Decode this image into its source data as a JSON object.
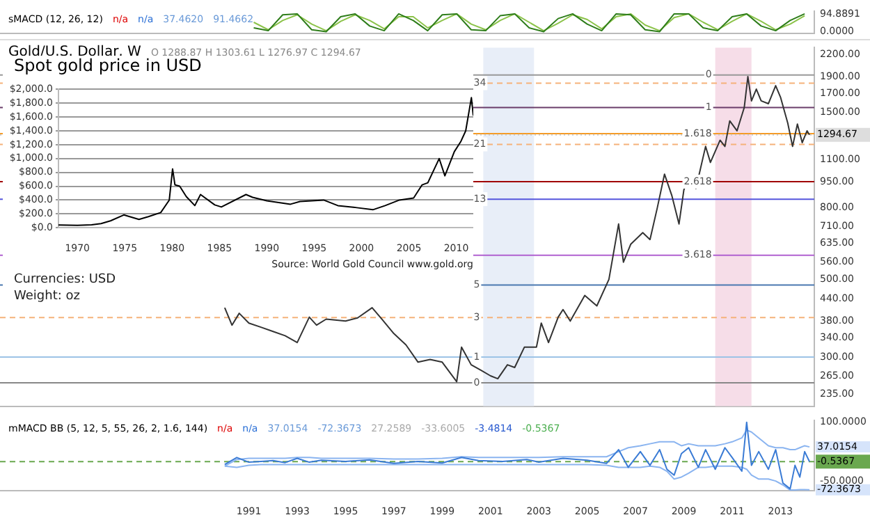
{
  "chart_data": [
    {
      "type": "line",
      "title": "sMACD (12, 26, 12)",
      "annotations": [
        "n/a",
        "n/a",
        "37.4620",
        "91.4662"
      ],
      "xlim": [
        1980.7,
        2014.4
      ],
      "ylim": [
        -8,
        108
      ],
      "yticks": [
        {
          "value": 0,
          "label": "0.0000"
        },
        {
          "value": 94.8891,
          "label": "94.8891"
        }
      ],
      "tick_labels": "y",
      "grid": false,
      "x": [
        1991.2,
        1991.8,
        1992.4,
        1993.0,
        1993.6,
        1994.2,
        1994.8,
        1995.4,
        1996.0,
        1996.6,
        1997.2,
        1997.8,
        1998.4,
        1999.0,
        1999.6,
        2000.2,
        2000.8,
        2001.4,
        2002.0,
        2002.6,
        2003.2,
        2003.8,
        2004.4,
        2005.0,
        2005.6,
        2006.2,
        2006.8,
        2007.4,
        2008.0,
        2008.6,
        2009.2,
        2009.8,
        2010.4,
        2011.0,
        2011.6,
        2012.2,
        2012.8,
        2013.4,
        2014.0
      ],
      "series": [
        {
          "color": "#2e7d1a",
          "values": [
            20,
            5,
            90,
            95,
            10,
            0,
            80,
            95,
            30,
            5,
            95,
            60,
            5,
            90,
            95,
            10,
            5,
            85,
            95,
            20,
            0,
            70,
            95,
            40,
            5,
            95,
            90,
            10,
            0,
            95,
            95,
            20,
            5,
            80,
            95,
            30,
            5,
            60,
            94.8891
          ]
        },
        {
          "color": "#8cc34a",
          "values": [
            50,
            10,
            60,
            90,
            40,
            5,
            55,
            90,
            60,
            15,
            80,
            80,
            20,
            60,
            95,
            40,
            10,
            60,
            95,
            50,
            5,
            45,
            90,
            65,
            15,
            80,
            95,
            35,
            5,
            75,
            95,
            50,
            10,
            55,
            95,
            55,
            10,
            40,
            85
          ]
        }
      ]
    },
    {
      "type": "line",
      "title": "Gold/U.S. Dollar, W",
      "annotations": [
        "O 1288.87 H 1303.61 L 1276.97 C 1294.67",
        {
          "text": "0",
          "x": 2000.3,
          "y": 253
        },
        {
          "text": "1",
          "x": 2000.3,
          "y": 300
        },
        {
          "text": "3",
          "x": 2000.3,
          "y": 389
        },
        {
          "text": "5",
          "x": 2000.3,
          "y": 482
        },
        {
          "text": "13",
          "x": 2000.3,
          "y": 848
        },
        {
          "text": "21",
          "x": 2000.3,
          "y": 1216
        },
        {
          "text": "34",
          "x": 2000.3,
          "y": 1820
        },
        {
          "text": "0",
          "x": 2009.9,
          "y": 1920
        },
        {
          "text": "1",
          "x": 2009.9,
          "y": 1550
        },
        {
          "text": "1.618",
          "x": 2009.0,
          "y": 1306
        },
        {
          "text": "2.618",
          "x": 2009.0,
          "y": 952
        },
        {
          "text": "3.618",
          "x": 2009.0,
          "y": 586
        }
      ],
      "log": true,
      "xlim": [
        1980.7,
        2014.4
      ],
      "ylim": [
        217,
        2300
      ],
      "tick_labels": "y",
      "grid": false,
      "yticks": [
        {
          "value": 235,
          "label": "235.00"
        },
        {
          "value": 265,
          "label": "265.00"
        },
        {
          "value": 300,
          "label": "300.00"
        },
        {
          "value": 340,
          "label": "340.00"
        },
        {
          "value": 380,
          "label": "380.00"
        },
        {
          "value": 440,
          "label": "440.00"
        },
        {
          "value": 500,
          "label": "500.00"
        },
        {
          "value": 560,
          "label": "560.00"
        },
        {
          "value": 635,
          "label": "635.00"
        },
        {
          "value": 710,
          "label": "710.00"
        },
        {
          "value": 800,
          "label": "800.00"
        },
        {
          "value": 950,
          "label": "950.00"
        },
        {
          "value": 1100,
          "label": "1100.00"
        },
        {
          "value": 1500,
          "label": "1500.00"
        },
        {
          "value": 1700,
          "label": "1700.00"
        },
        {
          "value": 1900,
          "label": "1900.00"
        },
        {
          "value": 2200,
          "label": "2200.00"
        }
      ],
      "x": [
        1990.0,
        1990.3,
        1990.6,
        1991.0,
        1991.5,
        1992.0,
        1992.5,
        1993.0,
        1993.5,
        1993.8,
        1994.2,
        1995.0,
        1995.5,
        1996.1,
        1996.5,
        1997.0,
        1997.5,
        1998.0,
        1998.5,
        1999.0,
        1999.6,
        1999.8,
        2000.2,
        2000.6,
        2001.0,
        2001.3,
        2001.7,
        2002.0,
        2002.4,
        2002.9,
        2003.1,
        2003.4,
        2003.8,
        2004.0,
        2004.3,
        2004.9,
        2005.4,
        2005.9,
        2006.3,
        2006.5,
        2006.8,
        2007.3,
        2007.6,
        2007.9,
        2008.2,
        2008.5,
        2008.8,
        2009.0,
        2009.2,
        2009.5,
        2009.9,
        2010.1,
        2010.5,
        2010.7,
        2010.9,
        2011.2,
        2011.5,
        2011.65,
        2011.8,
        2012.0,
        2012.2,
        2012.5,
        2012.8,
        2013.0,
        2013.3,
        2013.5,
        2013.7,
        2013.9,
        2014.1,
        2014.2
      ],
      "series": [
        {
          "color": "#333333",
          "values": [
            415,
            370,
            400,
            375,
            365,
            355,
            345,
            330,
            390,
            370,
            385,
            380,
            388,
            415,
            385,
            350,
            325,
            290,
            295,
            290,
            255,
            320,
            285,
            275,
            265,
            260,
            285,
            280,
            320,
            320,
            375,
            330,
            390,
            410,
            380,
            450,
            420,
            500,
            720,
            560,
            630,
            680,
            650,
            800,
            1000,
            870,
            720,
            900,
            990,
            910,
            1200,
            1080,
            1250,
            1200,
            1420,
            1330,
            1550,
            1900,
            1620,
            1750,
            1620,
            1590,
            1790,
            1660,
            1400,
            1200,
            1390,
            1230,
            1330,
            1294.67
          ]
        }
      ],
      "bands": [
        {
          "axis": "x",
          "from": 2000.7,
          "to": 2002.8,
          "color": "#e8eef8"
        },
        {
          "axis": "x",
          "from": 2010.3,
          "to": 2011.8,
          "color": "#f6dde8"
        }
      ],
      "ref_lines": [
        {
          "axis": "y",
          "value": 253,
          "color": "#888888"
        },
        {
          "axis": "y",
          "value": 300,
          "color": "#9cc3e6"
        },
        {
          "axis": "y",
          "value": 389,
          "color": "#f5b27a",
          "line_style": "dashed"
        },
        {
          "axis": "y",
          "value": 482,
          "color": "#4a78b0"
        },
        {
          "axis": "y",
          "value": 848,
          "color": "#5555dd"
        },
        {
          "axis": "y",
          "value": 1216,
          "color": "#f5b27a",
          "line_style": "dashed"
        },
        {
          "axis": "y",
          "value": 1820,
          "color": "#f5b27a",
          "line_style": "dashed"
        },
        {
          "axis": "y",
          "value": 1920,
          "color": "#999999"
        },
        {
          "axis": "y",
          "value": 1550,
          "color": "#6a3d6a"
        },
        {
          "axis": "y",
          "value": 1306,
          "color": "#f59a23"
        },
        {
          "axis": "y",
          "value": 952,
          "color": "#a00000"
        },
        {
          "axis": "y",
          "value": 586,
          "color": "#b060d0"
        },
        {
          "axis": "y",
          "value": 1294.67,
          "label": "1294.67",
          "color": "#cccccc",
          "line_style": "dotted"
        }
      ]
    },
    {
      "type": "line",
      "title": "Spot gold price in USD",
      "annotations": [
        "Source: World Gold Council www.gold.org",
        "Currencies:  USD",
        "Weight: oz"
      ],
      "xlim": [
        1968,
        2011.8
      ],
      "xticks": [
        1970,
        1975,
        1980,
        1985,
        1990,
        1995,
        2000,
        2005,
        2010
      ],
      "ylim": [
        0,
        2000
      ],
      "grid": "y",
      "yticks": [
        {
          "value": 0,
          "label": "$0.0"
        },
        {
          "value": 200,
          "label": "$200.0"
        },
        {
          "value": 400,
          "label": "$400.0"
        },
        {
          "value": 600,
          "label": "$600.0"
        },
        {
          "value": 800,
          "label": "$800.0"
        },
        {
          "value": 1000,
          "label": "$1,000.0"
        },
        {
          "value": 1200,
          "label": "$1,200.0"
        },
        {
          "value": 1400,
          "label": "$1,400.0"
        },
        {
          "value": 1600,
          "label": "$1,600.0"
        },
        {
          "value": 1800,
          "label": "$1,800.0"
        },
        {
          "value": 2000,
          "label": "$2,000.0"
        }
      ],
      "x": [
        1968,
        1970,
        1971.5,
        1972.5,
        1973.5,
        1974.9,
        1976.5,
        1977.5,
        1978.8,
        1979.7,
        1980.05,
        1980.3,
        1980.8,
        1981.5,
        1982.4,
        1983.0,
        1984.5,
        1985.2,
        1987.8,
        1988.5,
        1990,
        1992.5,
        1993.5,
        1996.0,
        1997.5,
        1999.5,
        2001.2,
        2002.5,
        2004,
        2005.5,
        2006.4,
        2007.0,
        2008.2,
        2008.8,
        2009.8,
        2010.5,
        2011.0,
        2011.6,
        2011.8
      ],
      "series": [
        {
          "color": "#000000",
          "values": [
            40,
            35,
            42,
            60,
            100,
            185,
            120,
            160,
            220,
            400,
            850,
            620,
            600,
            450,
            320,
            480,
            330,
            300,
            480,
            440,
            390,
            340,
            380,
            400,
            320,
            290,
            260,
            320,
            400,
            430,
            620,
            650,
            1000,
            750,
            1100,
            1250,
            1400,
            1880,
            1620
          ]
        }
      ]
    },
    {
      "type": "line",
      "title": "mMACD BB (5, 12, 5, 55, 26, 2, 1.6, 144)",
      "annotations": [
        "n/a",
        "n/a",
        "37.0154",
        "-72.3673",
        "27.2589",
        "-33.6005",
        "-3.4814",
        "-0.5367",
        {
          "text": "37.0154",
          "x": 2014.4,
          "y": 37.0154
        },
        {
          "text": "-72.3673",
          "x": 2014.4,
          "y": -72.3673
        }
      ],
      "xlim": [
        1980.7,
        2014.4
      ],
      "xticks": [
        1991,
        1993,
        1995,
        1997,
        1999,
        2001,
        2003,
        2005,
        2007,
        2009,
        2011,
        2013
      ],
      "ylim": [
        -75,
        104
      ],
      "yticks": [
        {
          "value": 100,
          "label": "100.0000"
        },
        {
          "value": -50,
          "label": "-50.0000"
        }
      ],
      "grid": false,
      "ref_lines": [
        {
          "axis": "y",
          "value": -0.5367,
          "label": "-0.5367",
          "color": "#6aa84f",
          "line_style": "dashed"
        }
      ],
      "x": [
        1990.0,
        1990.5,
        1991.0,
        1991.5,
        1992.0,
        1992.5,
        1993.0,
        1993.5,
        1994.0,
        1995.0,
        1996.0,
        1997.0,
        1998.0,
        1999.0,
        1999.8,
        2000.5,
        2001.5,
        2002.5,
        2003.0,
        2004.0,
        2005.0,
        2005.8,
        2006.3,
        2006.7,
        2007.2,
        2007.6,
        2008.0,
        2008.3,
        2008.6,
        2008.9,
        2009.2,
        2009.6,
        2009.9,
        2010.3,
        2010.7,
        2011.0,
        2011.4,
        2011.6,
        2011.8,
        2012.1,
        2012.5,
        2012.8,
        2013.1,
        2013.4,
        2013.6,
        2013.8,
        2014.0,
        2014.2
      ],
      "series": [
        {
          "color": "#3a7bd5",
          "values": [
            -8,
            10,
            -2,
            0,
            2,
            -3,
            8,
            -2,
            3,
            0,
            4,
            -5,
            0,
            -4,
            10,
            2,
            0,
            5,
            -2,
            8,
            3,
            -5,
            30,
            -15,
            25,
            -10,
            30,
            -20,
            -35,
            20,
            35,
            -15,
            30,
            -20,
            35,
            10,
            -25,
            100,
            -10,
            25,
            -20,
            30,
            -55,
            -70,
            -10,
            -40,
            25,
            -0.5367
          ]
        },
        {
          "color": "#8ab4f0",
          "values": [
            -12,
            5,
            8,
            8,
            8,
            8,
            10,
            10,
            8,
            8,
            8,
            6,
            6,
            8,
            12,
            10,
            10,
            10,
            10,
            12,
            12,
            12,
            25,
            35,
            40,
            45,
            50,
            50,
            50,
            40,
            45,
            40,
            40,
            40,
            45,
            50,
            60,
            80,
            75,
            60,
            40,
            35,
            35,
            30,
            30,
            35,
            40,
            37.0154
          ]
        },
        {
          "color": "#8ab4f0",
          "values": [
            -12,
            -15,
            -10,
            -8,
            -8,
            -8,
            -8,
            -8,
            -8,
            -8,
            -8,
            -8,
            -8,
            -8,
            -8,
            -8,
            -8,
            -8,
            -8,
            -8,
            -8,
            -10,
            -15,
            -15,
            -15,
            -12,
            -15,
            -25,
            -45,
            -40,
            -30,
            -15,
            -15,
            -12,
            -12,
            -12,
            -15,
            -20,
            -35,
            -45,
            -45,
            -50,
            -60,
            -73,
            -73,
            -72,
            -72,
            -72.3673
          ]
        }
      ]
    }
  ]
}
